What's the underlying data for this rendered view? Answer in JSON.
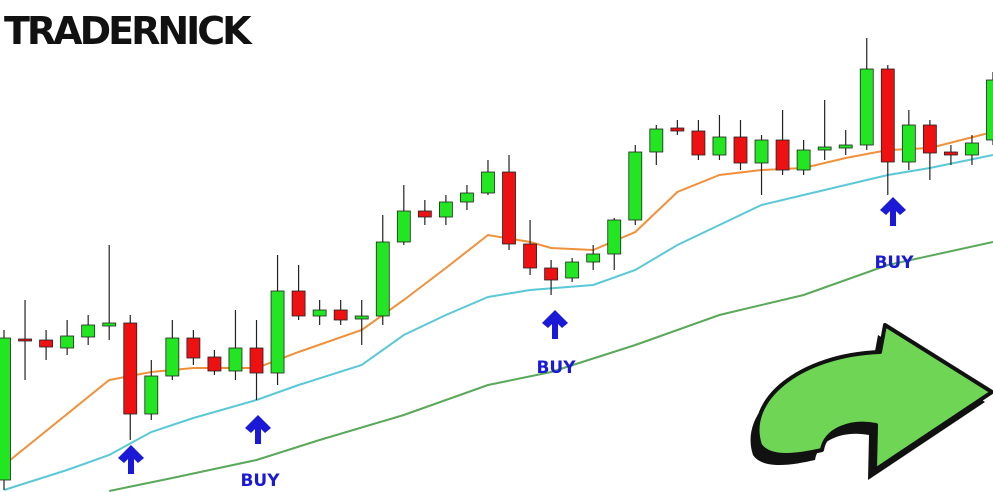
{
  "header": {
    "title": "TRADERNICK"
  },
  "chart_data": {
    "type": "candlestick",
    "up_color": "#22e622",
    "down_color": "#ee1111",
    "xlim": [
      -0.19,
      47
    ],
    "ylim": [
      0,
      492
    ],
    "open": [
      12,
      153,
      152,
      144,
      155,
      166,
      169,
      78,
      116,
      154,
      135,
      121,
      144,
      119,
      201,
      176,
      182,
      173,
      176,
      250,
      281,
      275,
      290,
      299,
      320,
      248,
      224,
      214,
      230,
      238,
      272,
      340,
      364,
      361,
      337,
      355,
      329,
      352,
      322,
      342,
      344,
      347,
      423,
      330,
      367,
      340,
      337,
      352
    ],
    "high": [
      162,
      192,
      162,
      172,
      177,
      247,
      177,
      132,
      172,
      162,
      142,
      182,
      172,
      237,
      227,
      192,
      192,
      192,
      277,
      307,
      292,
      297,
      307,
      332,
      337,
      272,
      232,
      234,
      247,
      274,
      347,
      367,
      372,
      372,
      377,
      372,
      357,
      382,
      352,
      392,
      362,
      454,
      427,
      382,
      372,
      347,
      357,
      420
    ],
    "low": [
      2,
      112,
      132,
      137,
      147,
      152,
      52,
      72,
      112,
      127,
      117,
      112,
      92,
      107,
      172,
      167,
      167,
      147,
      167,
      247,
      267,
      267,
      282,
      297,
      242,
      217,
      197,
      210,
      222,
      222,
      267,
      327,
      357,
      332,
      332,
      322,
      297,
      317,
      317,
      332,
      337,
      342,
      297,
      322,
      312,
      327,
      327,
      347
    ],
    "close": [
      154,
      151,
      145,
      156,
      167,
      169,
      78,
      116,
      154,
      134,
      121,
      144,
      119,
      201,
      176,
      182,
      172,
      176,
      250,
      281,
      275,
      290,
      299,
      320,
      248,
      224,
      212,
      230,
      238,
      272,
      340,
      363,
      361,
      337,
      355,
      329,
      352,
      322,
      342,
      345,
      347,
      423,
      330,
      367,
      339,
      337,
      349,
      412
    ],
    "lines": [
      {
        "color": "#f0913a",
        "x": [
          0,
          5,
          7,
          9,
          12,
          14,
          17,
          19,
          21,
          23,
          25,
          26,
          28,
          30,
          32,
          34,
          36,
          38,
          40,
          42,
          44,
          47
        ],
        "values": [
          27,
          112,
          120,
          124,
          124,
          140,
          162,
          192,
          224,
          257,
          250,
          244,
          242,
          260,
          300,
          317,
          322,
          324,
          334,
          342,
          344,
          360
        ]
      },
      {
        "color": "#5bc8d8",
        "x": [
          0,
          3,
          5,
          7,
          9,
          12,
          14,
          17,
          19,
          21,
          23,
          25,
          28,
          30,
          32,
          34,
          36,
          38,
          40,
          42,
          44,
          47
        ],
        "values": [
          2,
          22,
          37,
          60,
          74,
          92,
          107,
          127,
          157,
          177,
          195,
          202,
          207,
          222,
          247,
          267,
          287,
          297,
          307,
          317,
          324,
          337
        ]
      },
      {
        "color": "#5aa85a",
        "x": [
          5,
          8,
          12,
          15,
          19,
          23,
          26,
          30,
          34,
          38,
          42,
          47
        ],
        "values": [
          1,
          14,
          32,
          52,
          77,
          107,
          120,
          147,
          177,
          197,
          227,
          250
        ]
      }
    ],
    "annotations": [
      "BUY",
      "BUY",
      "BUY"
    ]
  }
}
